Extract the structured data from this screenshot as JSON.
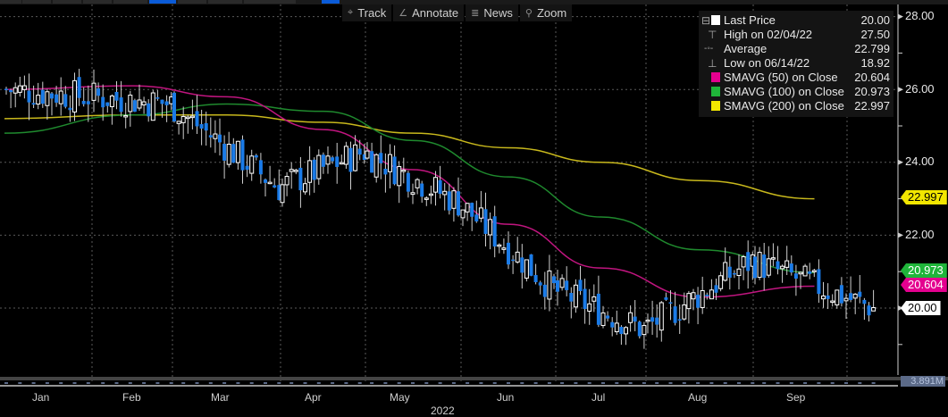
{
  "toolbar": {
    "buttons": [
      {
        "label": "Track",
        "icon": "crosshair-icon",
        "glyph": "⌖"
      },
      {
        "label": "Annotate",
        "icon": "pencil-icon",
        "glyph": "∠"
      },
      {
        "label": "News",
        "icon": "news-icon",
        "glyph": "≣"
      },
      {
        "label": "Zoom",
        "icon": "magnifier-icon",
        "glyph": "⚲"
      }
    ]
  },
  "legend": {
    "rows": [
      {
        "label": "Last Price",
        "value": "20.00",
        "color": "#ffffff",
        "kind": "swatch"
      },
      {
        "label": "High on 02/04/22",
        "value": "27.50",
        "kind": "glyph",
        "glyph": "⊤"
      },
      {
        "label": "Average",
        "value": "22.799",
        "kind": "glyph",
        "glyph": "-◦-"
      },
      {
        "label": "Low on 06/14/22",
        "value": "18.92",
        "kind": "glyph",
        "glyph": "⊥"
      },
      {
        "label": "SMAVG (50)  on Close",
        "value": "20.604",
        "color": "#e4008f",
        "kind": "swatch"
      },
      {
        "label": "SMAVG (100)  on Close",
        "value": "20.973",
        "color": "#1fb53a",
        "kind": "swatch"
      },
      {
        "label": "SMAVG (200)  on Close",
        "value": "22.997",
        "color": "#f2e600",
        "kind": "swatch"
      }
    ]
  },
  "y_axis": {
    "ticks": [
      "28.00",
      "26.00",
      "24.00",
      "22.00",
      "20.00"
    ]
  },
  "tags": {
    "sma200": {
      "value": "22.997",
      "bg": "#f2e600",
      "fg": "#000000"
    },
    "sma100": {
      "value": "20.973",
      "bg": "#1fb53a",
      "fg": "#ffffff"
    },
    "sma50": {
      "value": "20.604",
      "bg": "#e4008f",
      "fg": "#ffffff"
    },
    "last": {
      "value": "20.00",
      "bg": "#ffffff",
      "fg": "#000000"
    }
  },
  "x_axis": {
    "months": [
      "Jan",
      "Feb",
      "Mar",
      "Apr",
      "May",
      "Jun",
      "Jul",
      "Aug",
      "Sep"
    ],
    "year": "2022"
  },
  "volume": {
    "label": "3.891M"
  },
  "colors": {
    "up": "#ffffff",
    "down": "#1a7be8",
    "sma50": "#c0157f",
    "sma100": "#1f8a2e",
    "sma200": "#c8b81c",
    "grid": "#5a5a5a"
  },
  "chart_data": {
    "type": "candlestick",
    "title": "",
    "xlabel": "2022",
    "ylabel": "",
    "ylim": [
      18.5,
      28.2
    ],
    "grid": true,
    "legend_position": "top-right",
    "categories": [
      "Jan",
      "Feb",
      "Mar",
      "Apr",
      "May",
      "Jun",
      "Jul",
      "Aug",
      "Sep"
    ],
    "last_price": 20.0,
    "high": {
      "date": "02/04/22",
      "value": 27.5
    },
    "low": {
      "date": "06/14/22",
      "value": 18.92
    },
    "average": 22.799,
    "series": [
      {
        "name": "SMAVG (50) on Close",
        "last": 20.604,
        "monthly_approx": [
          26.0,
          26.1,
          25.8,
          24.9,
          23.8,
          22.3,
          21.1,
          20.3,
          20.6
        ]
      },
      {
        "name": "SMAVG (100) on Close",
        "last": 20.973,
        "monthly_approx": [
          24.8,
          25.3,
          25.6,
          25.4,
          24.6,
          23.6,
          22.5,
          21.6,
          20.97
        ]
      },
      {
        "name": "SMAVG (200) on Close",
        "last": 22.997,
        "monthly_approx": [
          25.2,
          25.3,
          25.3,
          25.1,
          24.8,
          24.4,
          24.0,
          23.5,
          23.0
        ]
      },
      {
        "name": "Last Price (monthly close approx)",
        "monthly_approx": [
          25.8,
          25.6,
          23.3,
          24.3,
          22.9,
          20.5,
          19.4,
          21.3,
          20.0
        ]
      }
    ]
  }
}
